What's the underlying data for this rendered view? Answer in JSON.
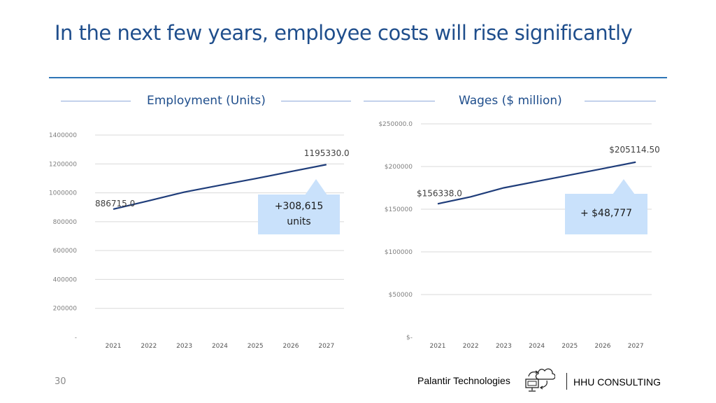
{
  "page": {
    "title": "In the next few years, employee costs will rise significantly",
    "page_number": "30",
    "footer_left": "Palantir Technologies",
    "footer_right": "HHU CONSULTING",
    "footer_icon": "cloud-computer-icon",
    "colors": {
      "title": "#1f4e8c",
      "line": "#1f3d7a",
      "grid": "#d9d9d9",
      "callout": "#c9e1fb",
      "rule": "#2e75b6"
    }
  },
  "panels": {
    "employment": {
      "title": "Employment (Units)",
      "callout": [
        "+308,615",
        "units"
      ]
    },
    "wages": {
      "title": "Wages ($ million)",
      "callout": [
        "+ $48,777"
      ]
    }
  },
  "chart_data": [
    {
      "type": "line",
      "title": "Employment (Units)",
      "categories": [
        "2021",
        "2022",
        "2023",
        "2024",
        "2025",
        "2026",
        "2027"
      ],
      "values": [
        886715,
        945000,
        1005000,
        1052000,
        1098000,
        1147000,
        1195330
      ],
      "ylim": [
        0,
        1400000
      ],
      "yticks": [
        0,
        200000,
        400000,
        600000,
        800000,
        1000000,
        1200000,
        1400000
      ],
      "ytick_labels": [
        "-",
        "200000",
        "400000",
        "600000",
        "800000",
        "1000000",
        "1200000",
        "1400000"
      ],
      "point_labels": [
        {
          "index": 0,
          "text": "886715.0"
        },
        {
          "index": 6,
          "text": "1195330.0"
        }
      ],
      "grid": true
    },
    {
      "type": "line",
      "title": "Wages ($ million)",
      "categories": [
        "2021",
        "2022",
        "2023",
        "2024",
        "2025",
        "2026",
        "2027"
      ],
      "values": [
        156338,
        164500,
        175000,
        182500,
        190000,
        197500,
        205114.5
      ],
      "ylim": [
        0,
        250000
      ],
      "yticks": [
        0,
        50000,
        100000,
        150000,
        200000,
        250000
      ],
      "ytick_labels": [
        "$-",
        "$50000",
        "$100000",
        "$150000",
        "$200000",
        "$250000.0"
      ],
      "point_labels": [
        {
          "index": 0,
          "text": "$156338.0"
        },
        {
          "index": 6,
          "text": "$205114.50"
        }
      ],
      "grid": true
    }
  ]
}
